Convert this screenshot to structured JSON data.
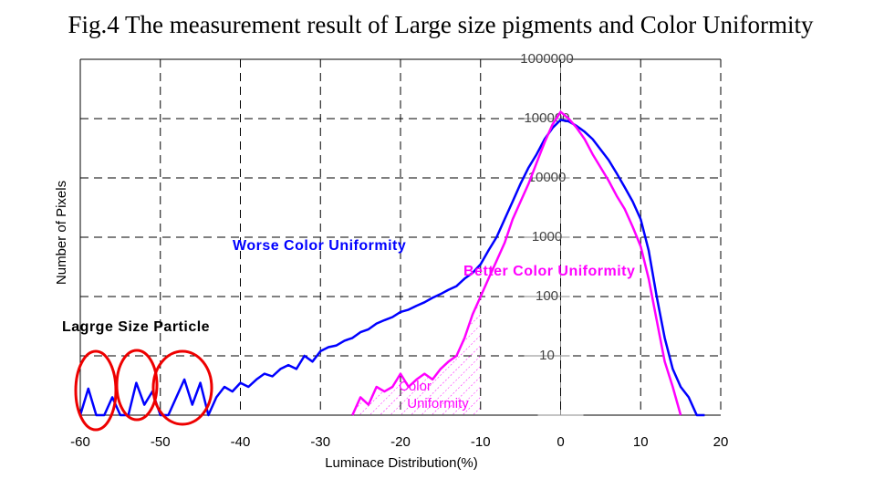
{
  "chart_data": {
    "type": "line",
    "title": "Fig.4 The measurement result of Large size pigments and Color Uniformity",
    "x_label": "Luminace Distribution(%)",
    "y_label": "Number of Pixels",
    "annotations": [
      "Worse Color Uniformity",
      "Better Color Uniformity",
      "Lagrge Size Particle",
      "Color",
      "Uniformity"
    ],
    "x": [
      -60,
      -59,
      -58,
      -57,
      -56,
      -55,
      -54,
      -53,
      -52,
      -51,
      -50,
      -49,
      -48,
      -47,
      -46,
      -45,
      -44,
      -43,
      -42,
      -41,
      -40,
      -39,
      -38,
      -37,
      -36,
      -35,
      -34,
      -33,
      -32,
      -31,
      -30,
      -29,
      -28,
      -27,
      -26,
      -25,
      -24,
      -23,
      -22,
      -21,
      -20,
      -19,
      -18,
      -17,
      -16,
      -15,
      -14,
      -13,
      -12,
      -11,
      -10,
      -9,
      -8,
      -7,
      -6,
      -5,
      -4,
      -3,
      -2,
      -1,
      0,
      1,
      2,
      3,
      4,
      5,
      6,
      7,
      8,
      9,
      10,
      11,
      12,
      13,
      14,
      15,
      16,
      17,
      18
    ],
    "series": [
      {
        "name": "Worse Color Uniformity",
        "color": "#0000ff",
        "values": [
          1,
          2.8,
          1,
          1,
          2,
          1,
          1,
          3.5,
          1.5,
          2.5,
          1,
          1,
          2,
          4,
          1.5,
          3.5,
          1,
          2,
          3,
          2.5,
          3.5,
          3,
          4,
          5,
          4.5,
          6,
          7,
          6,
          10,
          8,
          12,
          14,
          15,
          18,
          20,
          25,
          28,
          35,
          40,
          45,
          55,
          60,
          70,
          80,
          95,
          110,
          130,
          150,
          200,
          250,
          350,
          600,
          1000,
          2000,
          4000,
          8000,
          15000,
          25000,
          45000,
          70000,
          95000,
          90000,
          75000,
          60000,
          45000,
          30000,
          20000,
          12000,
          7000,
          4000,
          2000,
          600,
          100,
          20,
          6,
          3,
          2,
          1,
          1
        ]
      },
      {
        "name": "Better Color Uniformity",
        "color": "#ff00ff",
        "values": [
          null,
          null,
          null,
          null,
          null,
          null,
          null,
          null,
          null,
          null,
          null,
          null,
          null,
          null,
          null,
          null,
          null,
          null,
          null,
          null,
          null,
          null,
          null,
          null,
          null,
          null,
          null,
          null,
          null,
          null,
          null,
          null,
          null,
          null,
          1,
          2,
          1.5,
          3,
          2.5,
          3,
          5,
          3,
          4,
          5,
          4,
          6,
          8,
          10,
          20,
          50,
          100,
          200,
          400,
          800,
          2000,
          4000,
          8000,
          18000,
          40000,
          80000,
          130000,
          100000,
          70000,
          45000,
          25000,
          15000,
          9000,
          5000,
          3000,
          1500,
          700,
          200,
          40,
          8,
          3,
          1,
          null,
          null,
          null
        ]
      }
    ],
    "xlim": [
      -60,
      20
    ],
    "xticks": [
      -60,
      -50,
      -40,
      -30,
      -20,
      -10,
      0,
      10,
      20
    ],
    "ylim": [
      1,
      1000000
    ],
    "yticks": [
      10,
      100,
      1000,
      10000,
      100000,
      1000000
    ],
    "log_y": true,
    "grid": true
  }
}
